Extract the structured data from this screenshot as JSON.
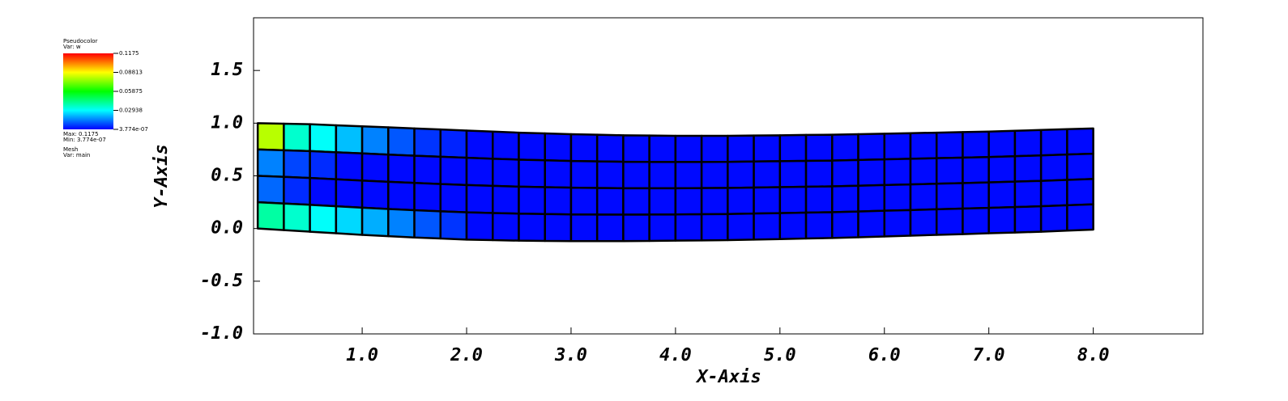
{
  "chart_data": {
    "type": "mesh",
    "x_label": "X-Axis",
    "y_label": "Y-Axis",
    "xlim": [
      -0.04,
      9.05
    ],
    "ylim": [
      -1.0,
      2.0
    ],
    "xticks": [
      {
        "value": 1,
        "label": "1.0"
      },
      {
        "value": 2,
        "label": "2.0"
      },
      {
        "value": 3,
        "label": "3.0"
      },
      {
        "value": 4,
        "label": "4.0"
      },
      {
        "value": 5,
        "label": "5.0"
      },
      {
        "value": 6,
        "label": "6.0"
      },
      {
        "value": 7,
        "label": "7.0"
      },
      {
        "value": 8,
        "label": "8.0"
      }
    ],
    "yticks": [
      {
        "value": -1,
        "label": "-1.0"
      },
      -0.5,
      {
        "value": 0,
        "label": "0.0"
      },
      0.5,
      {
        "value": 1,
        "label": "1.0"
      },
      1.5
    ],
    "x": [
      0,
      0.25,
      0.5,
      0.75,
      1,
      1.25,
      1.5,
      1.75,
      2,
      2.25,
      2.5,
      2.75,
      3,
      3.25,
      3.5,
      3.75,
      4,
      4.25,
      4.5,
      4.75,
      5,
      5.25,
      5.5,
      5.75,
      6,
      6.25,
      6.5,
      6.75,
      7,
      7.25,
      7.5,
      7.75,
      8
    ],
    "bottom": [
      0,
      -0.015,
      -0.03,
      -0.045,
      -0.06,
      -0.073,
      -0.085,
      -0.095,
      -0.105,
      -0.11,
      -0.115,
      -0.118,
      -0.12,
      -0.12,
      -0.12,
      -0.118,
      -0.115,
      -0.113,
      -0.11,
      -0.105,
      -0.1,
      -0.095,
      -0.09,
      -0.083,
      -0.075,
      -0.068,
      -0.06,
      -0.053,
      -0.045,
      -0.038,
      -0.03,
      -0.02,
      -0.01
    ],
    "top": [
      1.0,
      0.995,
      0.99,
      0.98,
      0.97,
      0.96,
      0.95,
      0.94,
      0.93,
      0.92,
      0.91,
      0.903,
      0.895,
      0.89,
      0.885,
      0.883,
      0.88,
      0.88,
      0.88,
      0.883,
      0.885,
      0.888,
      0.89,
      0.895,
      0.9,
      0.905,
      0.91,
      0.915,
      0.92,
      0.928,
      0.935,
      0.943,
      0.95
    ],
    "values": [
      [
        0.08,
        0.035,
        0.03,
        0.022,
        0.015,
        0.01,
        0.006,
        0.004,
        0.001,
        0.001,
        0.001,
        0.001,
        0.001,
        0.001,
        0.001,
        0.001,
        0.001,
        0.001,
        0.001,
        0.001,
        0.001,
        0.001,
        0.001,
        0.001,
        0.001,
        0.001,
        0.001,
        0.001,
        0.001,
        0.001,
        0.001,
        0.001
      ],
      [
        0.015,
        0.008,
        0.005,
        0.001,
        0.001,
        0.001,
        0.001,
        0.001,
        0.001,
        0.001,
        0.001,
        0.001,
        0.001,
        0.001,
        0.001,
        0.001,
        0.001,
        0.001,
        0.001,
        0.001,
        0.001,
        0.001,
        0.001,
        0.001,
        0.001,
        0.001,
        0.001,
        0.001,
        0.001,
        0.001,
        0.001,
        0.001
      ],
      [
        0.012,
        0.005,
        0.001,
        0.001,
        0.001,
        0.001,
        0.001,
        0.001,
        0.001,
        0.001,
        0.001,
        0.001,
        0.001,
        0.001,
        0.001,
        0.001,
        0.001,
        0.001,
        0.001,
        0.001,
        0.001,
        0.001,
        0.001,
        0.001,
        0.001,
        0.001,
        0.001,
        0.001,
        0.001,
        0.001,
        0.001,
        0.001
      ],
      [
        0.04,
        0.035,
        0.03,
        0.025,
        0.02,
        0.015,
        0.01,
        0.006,
        0.001,
        0.001,
        0.001,
        0.001,
        0.001,
        0.001,
        0.001,
        0.001,
        0.001,
        0.001,
        0.001,
        0.001,
        0.001,
        0.001,
        0.001,
        0.001,
        0.001,
        0.001,
        0.001,
        0.001,
        0.001,
        0.001,
        0.001,
        0.001
      ]
    ],
    "colormap": [
      "#0000ff",
      "#00ffff",
      "#00ff00",
      "#ffff00",
      "#ff0000"
    ],
    "mesh_color": "#000000",
    "legend": {
      "title": "Pseudocolor",
      "var": "Var: w",
      "clim": [
        3.774e-07,
        0.1175
      ],
      "ticks": [
        0.1175,
        0.08813,
        0.05875,
        0.02938,
        {
          "value": 3.774e-07,
          "label": "3.774e-07"
        }
      ],
      "max_label": "Max: 0.1175",
      "min_label": "Min: 3.774e-07",
      "mesh_title": "Mesh",
      "mesh_var": "Var: main"
    }
  }
}
